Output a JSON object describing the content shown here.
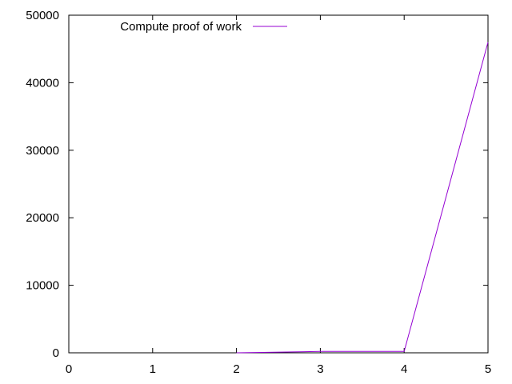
{
  "chart_data": {
    "type": "line",
    "title": "",
    "xlabel": "",
    "ylabel": "",
    "xlim": [
      0,
      5
    ],
    "ylim": [
      0,
      50000
    ],
    "x_ticks": [
      0,
      1,
      2,
      3,
      4,
      5
    ],
    "y_ticks": [
      0,
      10000,
      20000,
      30000,
      40000,
      50000
    ],
    "x_tick_labels": [
      "0",
      "1",
      "2",
      "3",
      "4",
      "5"
    ],
    "y_tick_labels": [
      "0",
      "10000",
      "20000",
      "30000",
      "40000",
      "50000"
    ],
    "grid": false,
    "legend_position": "top-left",
    "series": [
      {
        "name": "Compute proof of work",
        "color": "#9400d3",
        "x": [
          2,
          3,
          4,
          5
        ],
        "y": [
          0,
          200,
          200,
          46000
        ]
      }
    ]
  }
}
